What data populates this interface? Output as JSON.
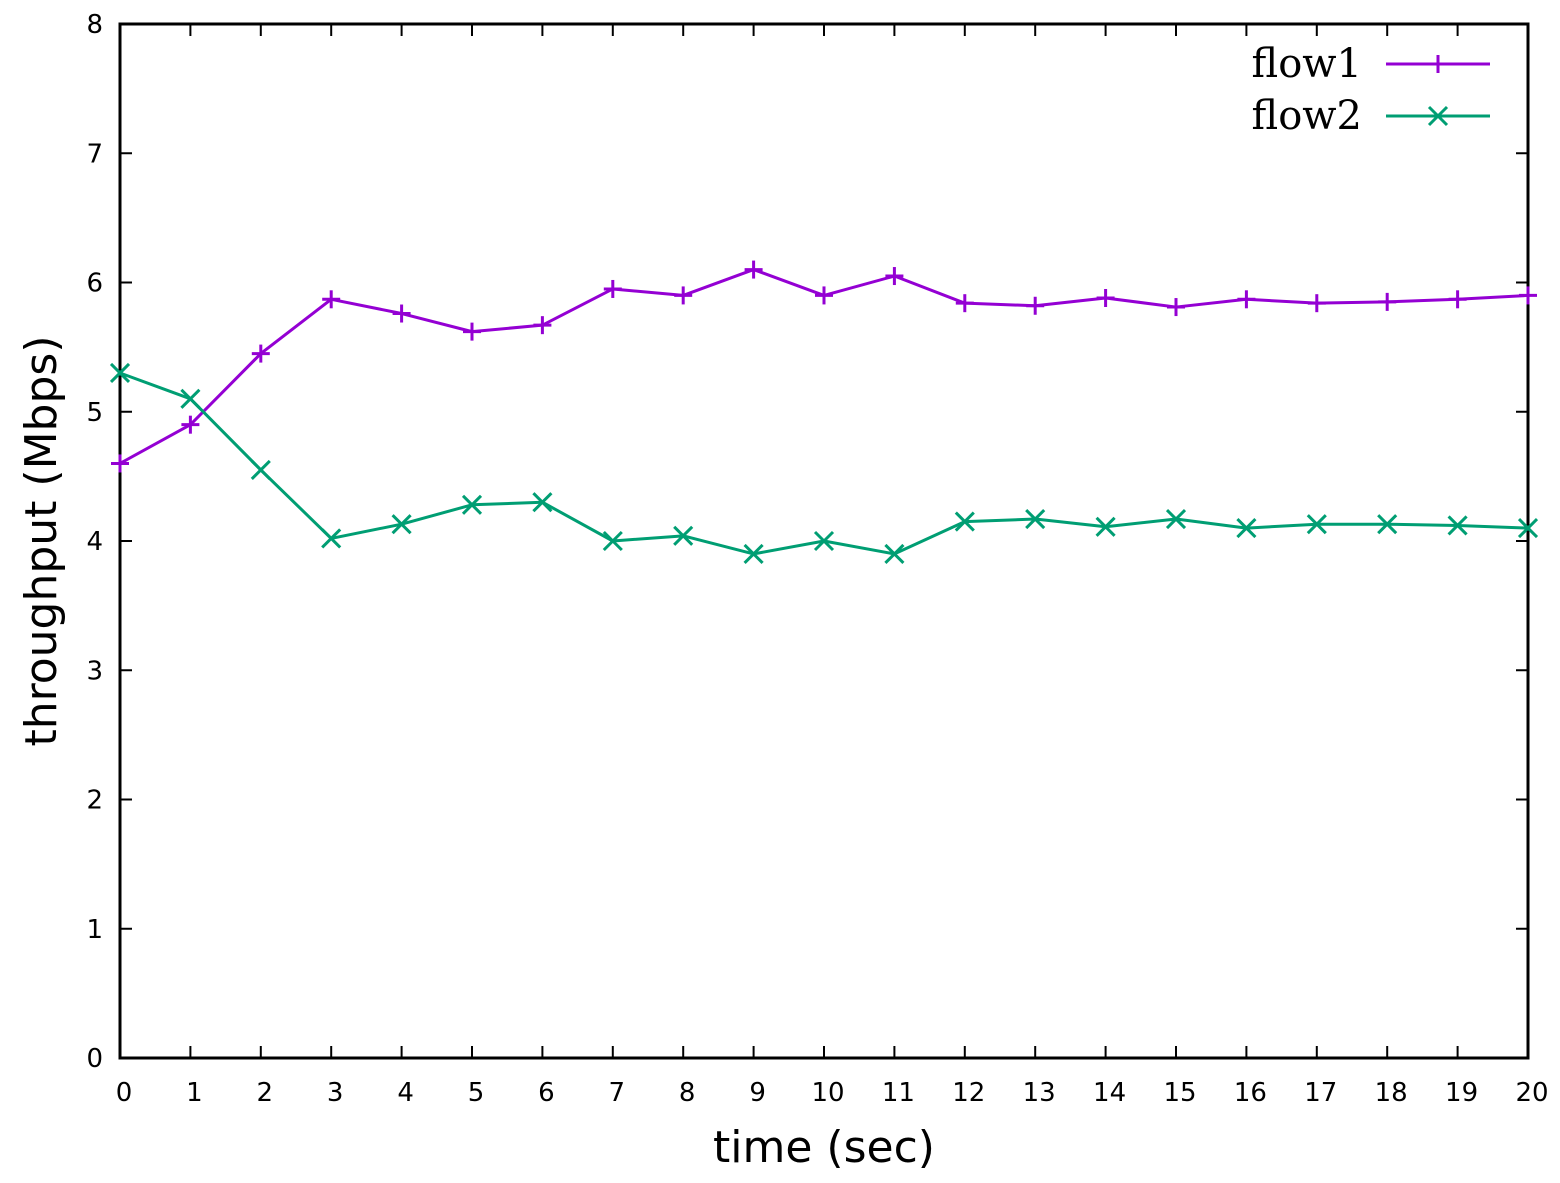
{
  "chart_data": {
    "type": "line",
    "xlabel": "time (sec)",
    "ylabel": "throughput (Mbps)",
    "xlim": [
      0,
      20
    ],
    "ylim": [
      0,
      8
    ],
    "xticks": [
      "0",
      "1",
      "2",
      "3",
      "4",
      "5",
      "6",
      "7",
      "8",
      "9",
      "10",
      "11",
      "12",
      "13",
      "14",
      "15",
      "16",
      "17",
      "18",
      "19",
      "20"
    ],
    "yticks": [
      "0",
      "1",
      "2",
      "3",
      "4",
      "5",
      "6",
      "7",
      "8"
    ],
    "grid": false,
    "legend_position": "top-right",
    "x": [
      0,
      1,
      2,
      3,
      4,
      5,
      6,
      7,
      8,
      9,
      10,
      11,
      12,
      13,
      14,
      15,
      16,
      17,
      18,
      19,
      20
    ],
    "series": [
      {
        "name": "flow1",
        "color": "#9400d3",
        "marker": "plus",
        "values": [
          4.6,
          4.9,
          5.45,
          5.87,
          5.76,
          5.62,
          5.67,
          5.95,
          5.9,
          6.1,
          5.9,
          6.05,
          5.84,
          5.82,
          5.88,
          5.81,
          5.87,
          5.84,
          5.85,
          5.87,
          5.9
        ]
      },
      {
        "name": "flow2",
        "color": "#009e73",
        "marker": "cross",
        "values": [
          5.3,
          5.1,
          4.55,
          4.02,
          4.13,
          4.28,
          4.3,
          4.0,
          4.04,
          3.9,
          4.0,
          3.9,
          4.15,
          4.17,
          4.11,
          4.17,
          4.1,
          4.13,
          4.13,
          4.12,
          4.1
        ]
      }
    ]
  }
}
